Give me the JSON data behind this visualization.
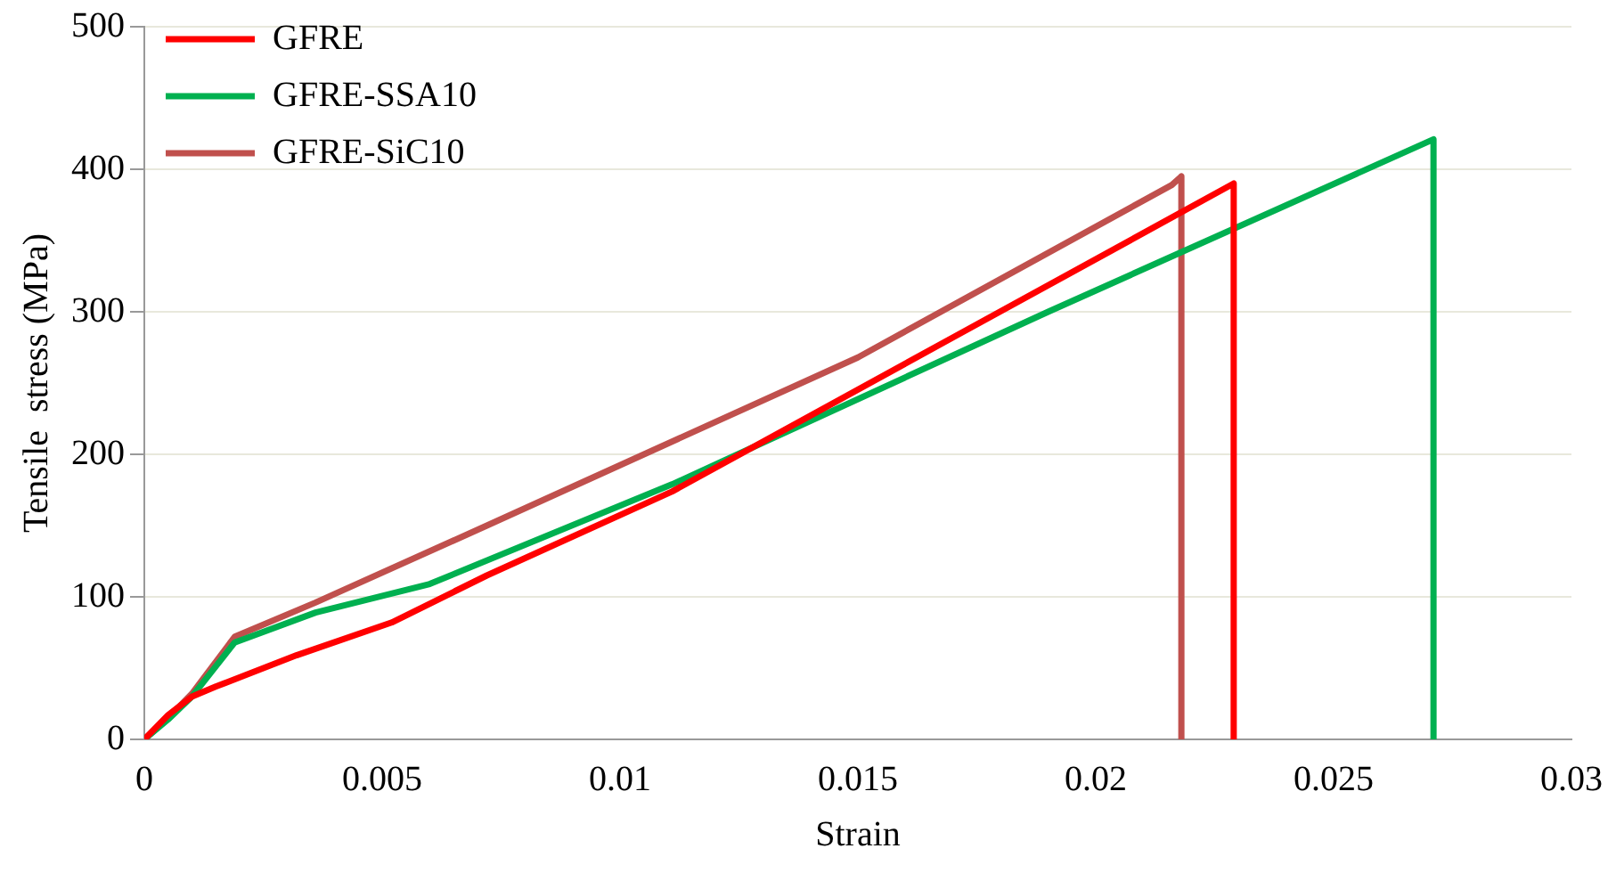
{
  "chart_data": {
    "type": "line",
    "xlabel": "Strain",
    "ylabel": "Tensile  stress (MPa)",
    "xlim": [
      0,
      0.03
    ],
    "xticks": [
      0,
      0.005,
      0.01,
      0.015,
      0.02,
      0.025,
      0.03
    ],
    "ylim": [
      0,
      500
    ],
    "yticks": [
      0,
      100,
      200,
      300,
      400,
      500
    ],
    "grid": "y",
    "legend": "top left",
    "marker": "none",
    "line_style": "solid",
    "series": [
      {
        "name": "GFRE",
        "color": "#ff0000",
        "x": [
          0,
          0.0005,
          0.001,
          0.0015,
          0.0032,
          0.0052,
          0.0072,
          0.0111,
          0.017,
          0.0229,
          0.0229
        ],
        "values": [
          0,
          17,
          30,
          37,
          59,
          82,
          115,
          174,
          282,
          390,
          0
        ]
      },
      {
        "name": "GFRE-SSA10",
        "color": "#00b050",
        "x": [
          0,
          0.0005,
          0.001,
          0.0019,
          0.0036,
          0.006,
          0.0111,
          0.019,
          0.0271,
          0.0271
        ],
        "values": [
          0,
          14,
          30,
          68,
          89,
          109,
          179,
          300,
          421,
          0
        ]
      },
      {
        "name": "GFRE-SiC10",
        "color": "#c0504d",
        "x": [
          0,
          0.0005,
          0.001,
          0.0019,
          0.0036,
          0.0072,
          0.0107,
          0.015,
          0.0216,
          0.0218,
          0.0218
        ],
        "values": [
          0,
          15,
          32,
          72,
          96,
          150,
          203,
          268,
          389,
          395,
          0
        ]
      }
    ]
  }
}
